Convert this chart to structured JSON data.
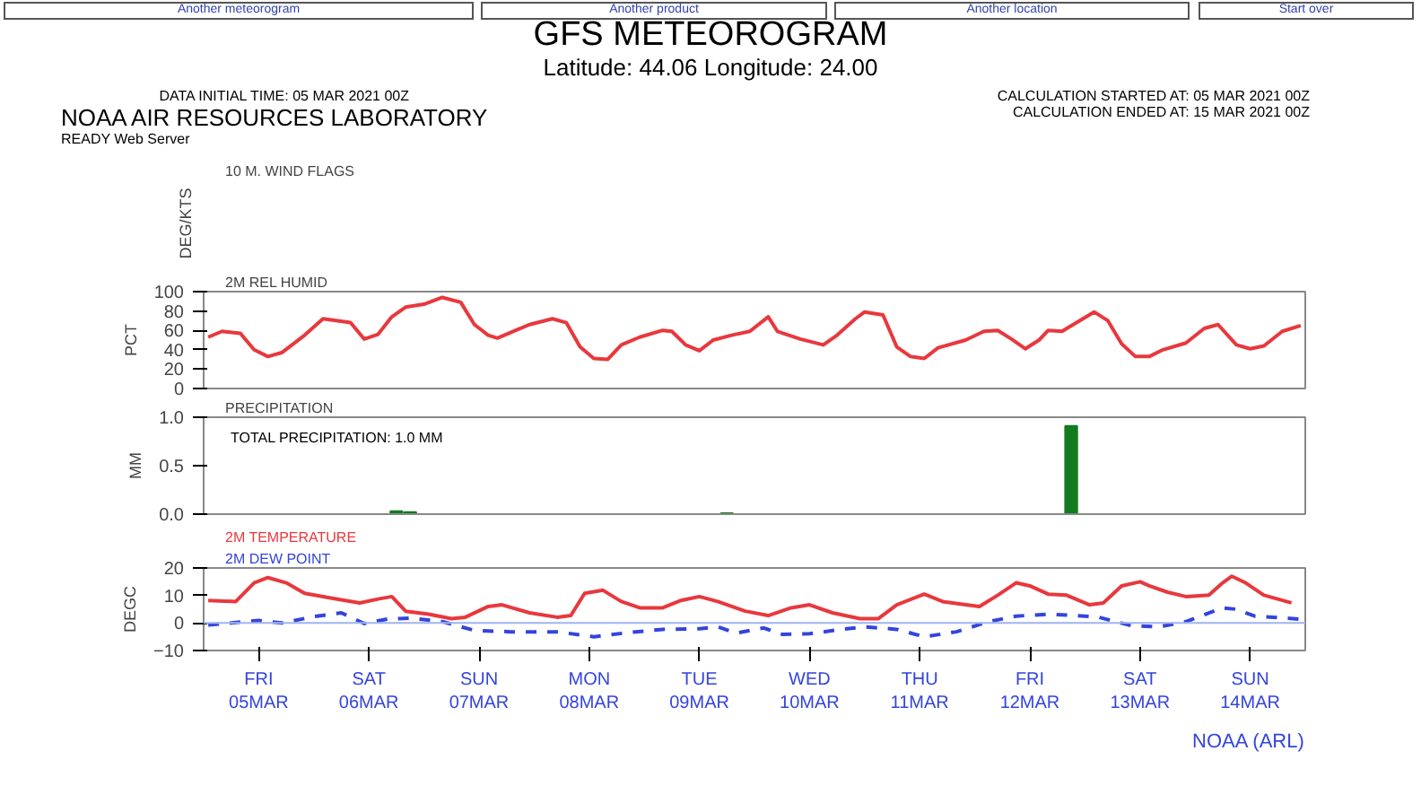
{
  "chart_data": [
    {
      "type": "other",
      "title": "GFS METEOROGRAM",
      "subtitle": "Latitude: 44.06 Longitude:  24.00",
      "annotations": [
        "Another meteorogram",
        "Another product",
        "Another location",
        "Start over",
        "DATA INITIAL TIME: 05 MAR 2021 00Z",
        "CALCULATION STARTED AT: 05 MAR 2021 00Z",
        "CALCULATION ENDED AT: 15 MAR 2021 00Z",
        "NOAA AIR RESOURCES LABORATORY",
        "READY Web Server",
        "10 M. WIND FLAGS"
      ],
      "ylabel": "DEG/KTS"
    },
    {
      "type": "line",
      "title": "2M REL HUMID",
      "ylabel": "PCT",
      "xlim": [
        "2021-03-05T00:00",
        "2021-03-15T00:00"
      ],
      "ylim": [
        0,
        100
      ],
      "yticks": [
        0,
        20,
        40,
        60,
        80,
        100
      ],
      "tick_labels": "y",
      "grid": false,
      "series": [
        {
          "color": "#e8383d",
          "x": [
            "2021-03-05T01:00",
            "2021-03-05T04:00",
            "2021-03-05T08:00",
            "2021-03-05T11:00",
            "2021-03-05T14:00",
            "2021-03-05T17:00",
            "2021-03-05T22:00",
            "2021-03-06T02:00",
            "2021-03-06T08:00",
            "2021-03-06T11:00",
            "2021-03-06T14:00",
            "2021-03-06T17:00",
            "2021-03-06T20:00",
            "2021-03-07T00:00",
            "2021-03-07T04:00",
            "2021-03-07T08:00",
            "2021-03-07T11:00",
            "2021-03-07T14:00",
            "2021-03-07T16:00",
            "2021-03-07T20:00",
            "2021-03-07T23:00",
            "2021-03-08T04:00",
            "2021-03-08T07:00",
            "2021-03-08T10:00",
            "2021-03-08T13:00",
            "2021-03-08T16:00",
            "2021-03-08T19:00",
            "2021-03-08T23:00",
            "2021-03-09T04:00",
            "2021-03-09T06:00",
            "2021-03-09T09:00",
            "2021-03-09T12:00",
            "2021-03-09T15:00",
            "2021-03-09T19:00",
            "2021-03-09T23:00",
            "2021-03-10T03:00",
            "2021-03-10T05:00",
            "2021-03-10T10:00",
            "2021-03-10T15:00",
            "2021-03-10T18:00",
            "2021-03-10T22:00",
            "2021-03-11T00:00",
            "2021-03-11T04:00",
            "2021-03-11T07:00",
            "2021-03-11T10:00",
            "2021-03-11T13:00",
            "2021-03-11T16:00",
            "2021-03-11T22:00",
            "2021-03-12T02:00",
            "2021-03-12T05:00",
            "2021-03-12T08:00",
            "2021-03-12T11:00",
            "2021-03-12T14:00",
            "2021-03-12T16:00",
            "2021-03-12T19:00",
            "2021-03-13T02:00",
            "2021-03-13T05:00",
            "2021-03-13T08:00",
            "2021-03-13T11:00",
            "2021-03-13T14:00",
            "2021-03-13T17:00",
            "2021-03-13T22:00",
            "2021-03-14T02:00",
            "2021-03-14T05:00",
            "2021-03-14T09:00",
            "2021-03-14T12:00",
            "2021-03-14T15:00",
            "2021-03-14T19:00",
            "2021-03-14T23:00"
          ],
          "values": [
            53,
            59,
            57,
            40,
            33,
            37,
            55,
            72,
            68,
            51,
            56,
            74,
            84,
            87,
            94,
            89,
            66,
            55,
            52,
            60,
            66,
            72,
            68,
            43,
            31,
            30,
            45,
            53,
            60,
            59,
            45,
            39,
            50,
            55,
            59,
            74,
            59,
            51,
            45,
            55,
            72,
            79,
            76,
            43,
            33,
            31,
            42,
            50,
            59,
            60,
            51,
            41,
            50,
            60,
            59,
            79,
            70,
            46,
            33,
            33,
            40,
            47,
            62,
            66,
            45,
            41,
            44,
            59,
            65
          ]
        }
      ]
    },
    {
      "type": "bar",
      "title": "PRECIPITATION",
      "ylabel": "MM",
      "xlim": [
        "2021-03-05T00:00",
        "2021-03-15T00:00"
      ],
      "ylim": [
        0,
        1.0
      ],
      "yticks": [
        {
          "value": 0,
          "label": "0.0"
        },
        {
          "value": 0.5,
          "label": "0.5"
        },
        {
          "value": 1.0,
          "label": "1.0"
        }
      ],
      "tick_labels": "y",
      "grid": false,
      "annotations": [
        "TOTAL PRECIPITATION:   1.0 MM"
      ],
      "series": [
        {
          "color": "#137a1e",
          "x": [
            "2021-03-06T18:00",
            "2021-03-06T21:00",
            "2021-03-09T18:00",
            "2021-03-12T21:00"
          ],
          "values": [
            0.03,
            0.02,
            0.01,
            0.91
          ]
        }
      ]
    },
    {
      "type": "line",
      "ylabel": "DEGC",
      "xlim": [
        "2021-03-05T00:00",
        "2021-03-15T00:00"
      ],
      "ylim": [
        -10,
        20
      ],
      "yticks": [
        -10,
        0,
        10,
        20
      ],
      "grid": false,
      "legend": "top left",
      "xticks": [
        {
          "value": "2021-03-05T12:00",
          "label": "FRI\n05MAR"
        },
        {
          "value": "2021-03-06T12:00",
          "label": "SAT\n06MAR"
        },
        {
          "value": "2021-03-07T12:00",
          "label": "SUN\n07MAR"
        },
        {
          "value": "2021-03-08T12:00",
          "label": "MON\n08MAR"
        },
        {
          "value": "2021-03-09T12:00",
          "label": "TUE\n09MAR"
        },
        {
          "value": "2021-03-10T12:00",
          "label": "WED\n10MAR"
        },
        {
          "value": "2021-03-11T12:00",
          "label": "THU\n11MAR"
        },
        {
          "value": "2021-03-12T12:00",
          "label": "FRI\n12MAR"
        },
        {
          "value": "2021-03-13T12:00",
          "label": "SAT\n13MAR"
        },
        {
          "value": "2021-03-14T12:00",
          "label": "SUN\n14MAR"
        }
      ],
      "ref_lines": [
        {
          "axis": "y",
          "value": 0,
          "color": "#9fb4f0"
        }
      ],
      "annotations": [
        "NOAA (ARL)"
      ],
      "series": [
        {
          "name": "2M TEMPERATURE",
          "color": "#e8383d",
          "line_style": "solid",
          "x": [
            "2021-03-05T01:00",
            "2021-03-05T07:00",
            "2021-03-05T11:00",
            "2021-03-05T14:00",
            "2021-03-05T18:00",
            "2021-03-05T22:00",
            "2021-03-06T04:00",
            "2021-03-06T10:00",
            "2021-03-06T14:00",
            "2021-03-06T17:00",
            "2021-03-06T20:00",
            "2021-03-07T01:00",
            "2021-03-07T06:00",
            "2021-03-07T09:00",
            "2021-03-07T14:00",
            "2021-03-07T17:00",
            "2021-03-07T23:00",
            "2021-03-08T05:00",
            "2021-03-08T08:00",
            "2021-03-08T11:00",
            "2021-03-08T15:00",
            "2021-03-08T19:00",
            "2021-03-08T23:00",
            "2021-03-09T04:00",
            "2021-03-09T08:00",
            "2021-03-09T12:00",
            "2021-03-09T16:00",
            "2021-03-09T22:00",
            "2021-03-10T03:00",
            "2021-03-10T08:00",
            "2021-03-10T12:00",
            "2021-03-10T17:00",
            "2021-03-10T23:00",
            "2021-03-11T03:00",
            "2021-03-11T07:00",
            "2021-03-11T13:00",
            "2021-03-11T17:00",
            "2021-03-12T01:00",
            "2021-03-12T05:00",
            "2021-03-12T09:00",
            "2021-03-12T12:00",
            "2021-03-12T16:00",
            "2021-03-12T20:00",
            "2021-03-13T01:00",
            "2021-03-13T04:00",
            "2021-03-13T08:00",
            "2021-03-13T12:00",
            "2021-03-13T14:00",
            "2021-03-13T18:00",
            "2021-03-13T22:00",
            "2021-03-14T03:00",
            "2021-03-14T06:00",
            "2021-03-14T08:00",
            "2021-03-14T11:00",
            "2021-03-14T15:00",
            "2021-03-14T21:00"
          ],
          "values": [
            8.2,
            7.8,
            14.6,
            16.5,
            14.6,
            10.8,
            9.0,
            7.3,
            8.7,
            9.6,
            4.3,
            3.2,
            1.6,
            2.1,
            6.0,
            6.6,
            3.7,
            2.1,
            2.7,
            10.8,
            11.9,
            7.8,
            5.5,
            5.5,
            8.2,
            9.6,
            7.8,
            4.3,
            2.7,
            5.5,
            6.6,
            3.7,
            1.6,
            1.6,
            6.6,
            10.5,
            7.8,
            6.0,
            10.1,
            14.6,
            13.5,
            10.5,
            10.1,
            6.6,
            7.3,
            13.5,
            15.0,
            13.5,
            11.2,
            9.6,
            10.1,
            14.6,
            17.0,
            14.6,
            10.1,
            7.3
          ]
        },
        {
          "name": "2M  DEW POINT",
          "color": "#3344dd",
          "line_style": "dashed",
          "x": [
            "2021-03-05T01:00",
            "2021-03-05T12:00",
            "2021-03-05T17:00",
            "2021-03-06T00:00",
            "2021-03-06T06:00",
            "2021-03-06T11:00",
            "2021-03-06T16:00",
            "2021-03-06T21:00",
            "2021-03-07T04:00",
            "2021-03-07T11:00",
            "2021-03-07T19:00",
            "2021-03-08T05:00",
            "2021-03-08T13:00",
            "2021-03-08T21:00",
            "2021-03-09T04:00",
            "2021-03-09T12:00",
            "2021-03-09T16:00",
            "2021-03-09T20:00",
            "2021-03-10T02:00",
            "2021-03-10T06:00",
            "2021-03-10T12:00",
            "2021-03-10T19:00",
            "2021-03-11T00:00",
            "2021-03-11T07:00",
            "2021-03-11T13:00",
            "2021-03-11T20:00",
            "2021-03-12T03:00",
            "2021-03-12T09:00",
            "2021-03-12T16:00",
            "2021-03-12T22:00",
            "2021-03-13T03:00",
            "2021-03-13T10:00",
            "2021-03-13T16:00",
            "2021-03-13T22:00",
            "2021-03-14T06:00",
            "2021-03-14T09:00",
            "2021-03-14T13:00",
            "2021-03-14T23:00"
          ],
          "values": [
            -0.7,
            0.9,
            0,
            2.3,
            3.7,
            -0.2,
            1.4,
            1.8,
            0.5,
            -2.7,
            -3.2,
            -3.2,
            -5.0,
            -3.4,
            -2.3,
            -2.1,
            -1.4,
            -3.7,
            -1.8,
            -4.1,
            -3.9,
            -2.3,
            -1.4,
            -2.3,
            -5.0,
            -3.2,
            0.5,
            2.5,
            3.2,
            2.7,
            2.1,
            -0.9,
            -1.4,
            0.5,
            5.5,
            5.0,
            2.5,
            1.4
          ]
        }
      ]
    }
  ]
}
